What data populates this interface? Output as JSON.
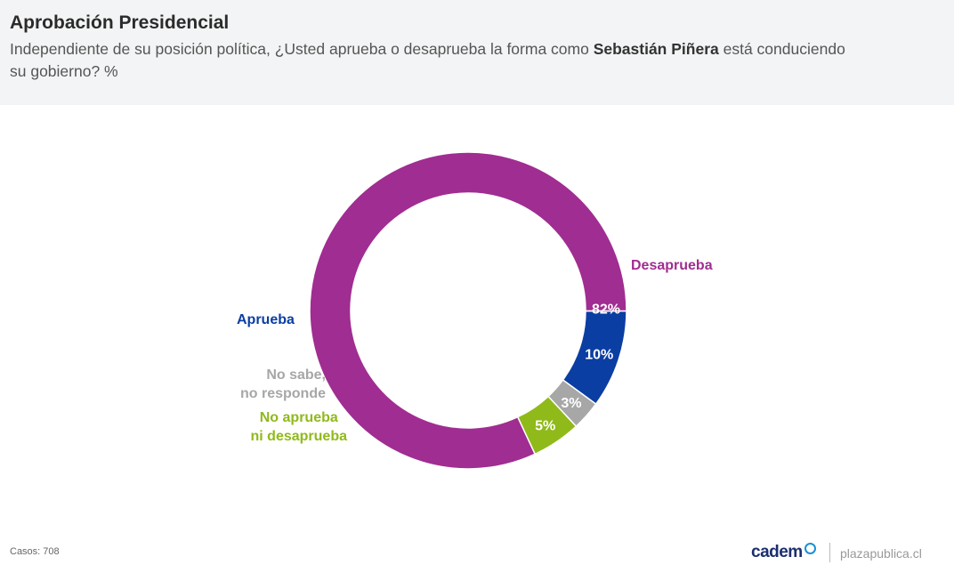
{
  "header": {
    "title": "Aprobación Presidencial",
    "subtitle_pre": "Independiente de su posición política, ¿Usted aprueba o desaprueba la forma como ",
    "subtitle_bold": "Sebastián Piñera",
    "subtitle_post": " está conduciendo su gobierno? %"
  },
  "chart_data": {
    "type": "pie",
    "style": "donut",
    "title": "Aprobación Presidencial",
    "unit": "%",
    "slices": [
      {
        "name": "Desaprueba",
        "value": 82,
        "value_label": "82%",
        "color": "#a02d91"
      },
      {
        "name": "Aprueba",
        "value": 10,
        "value_label": "10%",
        "color": "#0a3ea2"
      },
      {
        "name": "No sabe, no responde",
        "value": 3,
        "value_label": "3%",
        "color": "#a7a7a7"
      },
      {
        "name": "No aprueba ni desaprueba",
        "value": 5,
        "value_label": "5%",
        "color": "#8fba1a"
      }
    ],
    "legend": "labels-outside"
  },
  "labels": {
    "desaprueba": "Desaprueba",
    "aprueba": "Aprueba",
    "nsnr_line1": "No sabe,",
    "nsnr_line2": "no responde",
    "ni_line1": "No aprueba",
    "ni_line2": "ni desaprueba"
  },
  "footer": {
    "casos": "Casos: 708",
    "brand": "cadem",
    "site": "plazapublica.cl"
  }
}
